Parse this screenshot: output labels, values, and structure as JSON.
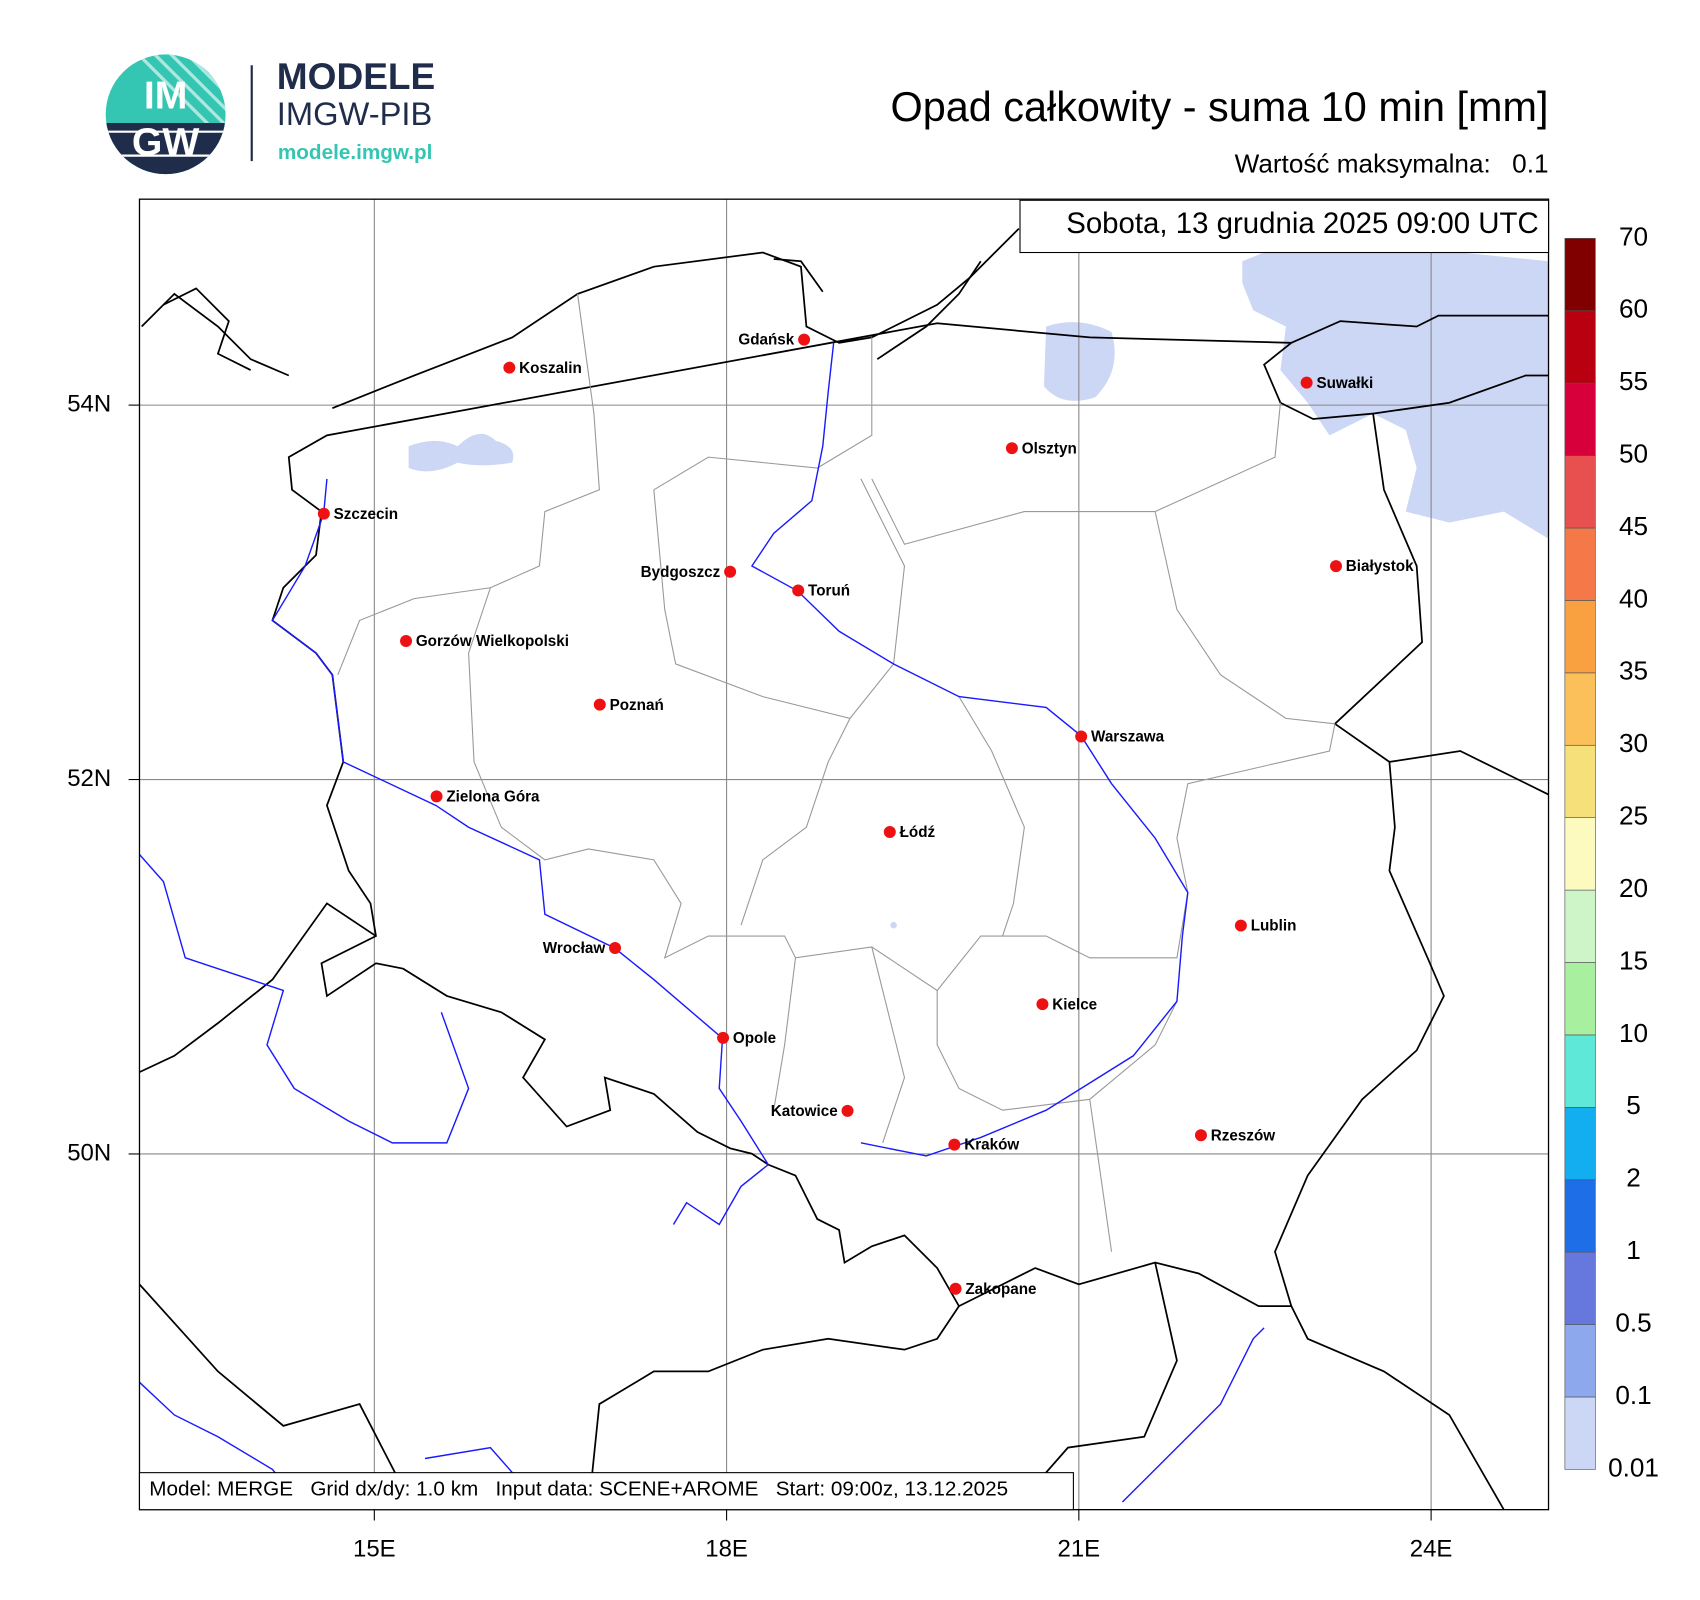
{
  "header": {
    "logo_top": "IM",
    "logo_bottom": "GW",
    "brand": "MODELE",
    "brand_sub": "IMGW-PIB",
    "url": "modele.imgw.pl"
  },
  "map": {
    "type": "map",
    "title": "Opad całkowity - suma 10 min [mm]",
    "max_label": "Wartość maksymalna:",
    "max_value": 0.1,
    "valid_time": "Sobota, 13 grudnia 2025 09:00 UTC",
    "footer": "Model: MERGE   Grid dx/dy: 1.0 km   Input data: SCENE+AROME   Start: 09:00z, 13.12.2025",
    "xlim": [
      13,
      25
    ],
    "ylim": [
      48.1,
      55.1
    ],
    "xticks": [
      {
        "value": 15,
        "label": "15E"
      },
      {
        "value": 18,
        "label": "18E"
      },
      {
        "value": 21,
        "label": "21E"
      },
      {
        "value": 24,
        "label": "24E"
      }
    ],
    "yticks": [
      {
        "value": 50,
        "label": "50N"
      },
      {
        "value": 52,
        "label": "52N"
      },
      {
        "value": 54,
        "label": "54N"
      }
    ],
    "grid": true,
    "cities": [
      {
        "name": "Gdańsk",
        "lon": 18.66,
        "lat": 54.35
      },
      {
        "name": "Koszalin",
        "lon": 16.15,
        "lat": 54.2
      },
      {
        "name": "Szczecin",
        "lon": 14.57,
        "lat": 53.42
      },
      {
        "name": "Suwałki",
        "lon": 22.94,
        "lat": 54.12
      },
      {
        "name": "Olsztyn",
        "lon": 20.43,
        "lat": 53.77
      },
      {
        "name": "Bydgoszcz",
        "lon": 18.03,
        "lat": 53.11
      },
      {
        "name": "Toruń",
        "lon": 18.61,
        "lat": 53.01
      },
      {
        "name": "Białystok",
        "lon": 23.19,
        "lat": 53.14
      },
      {
        "name": "Gorzów Wielkopolski",
        "lon": 15.27,
        "lat": 52.74
      },
      {
        "name": "Poznań",
        "lon": 16.92,
        "lat": 52.4
      },
      {
        "name": "Warszawa",
        "lon": 21.02,
        "lat": 52.23
      },
      {
        "name": "Zielona Góra",
        "lon": 15.53,
        "lat": 51.91
      },
      {
        "name": "Łódź",
        "lon": 19.39,
        "lat": 51.72
      },
      {
        "name": "Lublin",
        "lon": 22.38,
        "lat": 51.22
      },
      {
        "name": "Wrocław",
        "lon": 17.05,
        "lat": 51.1
      },
      {
        "name": "Kielce",
        "lon": 20.69,
        "lat": 50.8
      },
      {
        "name": "Opole",
        "lon": 17.97,
        "lat": 50.62
      },
      {
        "name": "Katowice",
        "lon": 19.03,
        "lat": 50.23
      },
      {
        "name": "Kraków",
        "lon": 19.94,
        "lat": 50.05
      },
      {
        "name": "Rzeszów",
        "lon": 22.04,
        "lat": 50.1
      },
      {
        "name": "Zakopane",
        "lon": 19.95,
        "lat": 49.28
      }
    ],
    "colorbar": {
      "levels": [
        0.01,
        0.1,
        0.5,
        1,
        2,
        5,
        10,
        15,
        20,
        25,
        30,
        35,
        40,
        45,
        50,
        55,
        60,
        70
      ],
      "colors": [
        "#ccd6f5",
        "#8ea8ee",
        "#6678de",
        "#1e6ee8",
        "#12aef0",
        "#5ee8d8",
        "#a8f0a0",
        "#cdf5c8",
        "#fdfac0",
        "#f6e07a",
        "#fbc05a",
        "#f9a040",
        "#f57848",
        "#e85050",
        "#d8003a",
        "#b80010",
        "#800000"
      ]
    }
  }
}
